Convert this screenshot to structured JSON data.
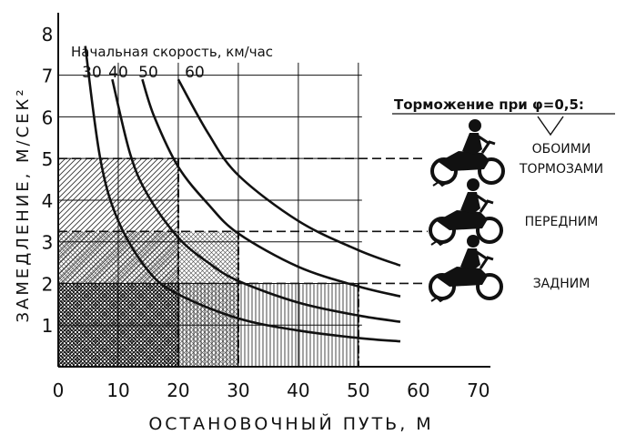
{
  "chart_data": {
    "type": "line",
    "xlabel": "ОСТАНОВОЧНЫЙ ПУТЬ, М",
    "ylabel": "ЗАМЕДЛЕНИЕ, М/СЕК²",
    "x_ticks": [
      "0",
      "10",
      "20",
      "30",
      "40",
      "50",
      "60",
      "70"
    ],
    "y_ticks": [
      "1",
      "2",
      "3",
      "4",
      "5",
      "6",
      "7",
      "8"
    ],
    "xlim": [
      0,
      72
    ],
    "ylim": [
      0,
      8.5
    ],
    "grid": true,
    "speed_title": "Начальная скорость, км/час",
    "series": [
      {
        "name": "30",
        "speed_kmh": 30,
        "x": [
          4.5,
          7,
          10,
          15,
          20,
          30,
          40,
          50,
          57
        ],
        "y": [
          7.7,
          5.0,
          3.5,
          2.3,
          1.74,
          1.16,
          0.87,
          0.69,
          0.61
        ]
      },
      {
        "name": "40",
        "speed_kmh": 40,
        "x": [
          9,
          12,
          15,
          20,
          25,
          30,
          40,
          50,
          57
        ],
        "y": [
          6.9,
          5.1,
          4.1,
          3.1,
          2.5,
          2.06,
          1.54,
          1.23,
          1.08
        ]
      },
      {
        "name": "50",
        "speed_kmh": 50,
        "x": [
          14,
          16,
          20,
          25,
          30,
          40,
          50,
          57
        ],
        "y": [
          6.9,
          6.0,
          4.8,
          3.9,
          3.2,
          2.4,
          1.93,
          1.69
        ]
      },
      {
        "name": "60",
        "speed_kmh": 60,
        "x": [
          20,
          25,
          30,
          40,
          50,
          57
        ],
        "y": [
          6.9,
          5.6,
          4.6,
          3.5,
          2.8,
          2.43
        ]
      }
    ],
    "legend_title": "Торможение при φ=0,5:",
    "braking_levels": [
      {
        "label": "ОБОИМИ ТОРМОЗАМИ",
        "lines": [
          "ОБОИМИ",
          "ТОРМОЗАМИ"
        ],
        "deceleration": 5.0
      },
      {
        "label": "ПЕРЕДНИМ",
        "lines": [
          "ПЕРЕДНИМ"
        ],
        "deceleration": 3.25
      },
      {
        "label": "ЗАДНИМ",
        "lines": [
          "ЗАДНИМ"
        ],
        "deceleration": 2.0
      }
    ],
    "stopping_distances_m": [
      20,
      30,
      50
    ]
  },
  "colors": {
    "ink": "#111111",
    "background": "#ffffff"
  },
  "icons": {
    "motorcycle": "motorcycle-rider-icon"
  }
}
